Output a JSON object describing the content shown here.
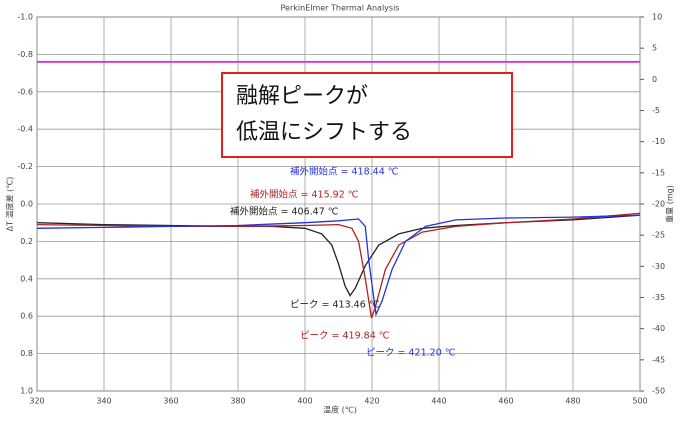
{
  "chart_data": {
    "type": "line",
    "title": "PerkinElmer Thermal Analysis",
    "xlabel": "温度 (℃)",
    "ylabel": "ΔT 温度差 (℃)",
    "y2label": "重量 (mg)",
    "xlim": [
      320,
      500
    ],
    "xticks": [
      320,
      340,
      360,
      380,
      400,
      420,
      440,
      460,
      480,
      500
    ],
    "ylim": [
      1.0,
      -1.0
    ],
    "yticks": [
      {
        "value": -1.0,
        "label": "-1.0"
      },
      -0.8,
      -0.6,
      -0.4,
      -0.2,
      {
        "value": 0,
        "label": "0.0"
      },
      0.2,
      0.4,
      0.6,
      0.8,
      {
        "value": 1.0,
        "label": "1.0"
      }
    ],
    "y2lim": [
      -50,
      10
    ],
    "y2ticks": [
      10,
      5,
      0,
      -5,
      -10,
      -15,
      -20,
      -25,
      -30,
      -35,
      -40,
      -45,
      -50
    ],
    "grid": true,
    "series": [
      {
        "color": "#222222",
        "x": [
          320,
          340,
          360,
          380,
          390,
          400,
          405,
          408,
          410,
          412,
          413.46,
          415,
          418,
          422,
          428,
          435,
          445,
          460,
          480,
          500
        ],
        "values": [
          0.1,
          0.11,
          0.115,
          0.12,
          0.12,
          0.13,
          0.16,
          0.22,
          0.32,
          0.44,
          0.49,
          0.45,
          0.33,
          0.22,
          0.16,
          0.13,
          0.115,
          0.1,
          0.085,
          0.06
        ]
      },
      {
        "color": "#b22222",
        "x": [
          320,
          340,
          360,
          380,
          400,
          410,
          414,
          416,
          418,
          419.84,
          421,
          424,
          428,
          435,
          445,
          460,
          480,
          500
        ],
        "values": [
          0.11,
          0.115,
          0.12,
          0.12,
          0.115,
          0.11,
          0.13,
          0.2,
          0.4,
          0.61,
          0.55,
          0.35,
          0.22,
          0.15,
          0.12,
          0.1,
          0.08,
          0.05
        ]
      },
      {
        "color": "#2233dd",
        "x": [
          320,
          340,
          360,
          380,
          400,
          410,
          416,
          418,
          419,
          421.2,
          423,
          426,
          430,
          436,
          445,
          460,
          480,
          500
        ],
        "values": [
          0.13,
          0.125,
          0.12,
          0.115,
          0.1,
          0.09,
          0.08,
          0.12,
          0.3,
          0.59,
          0.52,
          0.35,
          0.2,
          0.12,
          0.085,
          0.075,
          0.07,
          0.06
        ]
      },
      {
        "color": "#cc44cc",
        "axis": "y2",
        "x": [
          320,
          500
        ],
        "values": [
          2.8,
          2.8
        ]
      }
    ],
    "annotations": [
      {
        "text": "補外開始点 = 418.44 ℃",
        "color": "#2233dd"
      },
      {
        "text": "補外開始点 = 415.92 ℃",
        "color": "#b22222"
      },
      {
        "text": "補外開始点 = 406.47 ℃",
        "color": "#222222"
      },
      {
        "text": "ピーク = 413.46 ℃",
        "color": "#222222"
      },
      {
        "text": "ピーク = 419.84 ℃",
        "color": "#b22222"
      },
      {
        "text": "ピーク = 421.20 ℃",
        "color": "#2233dd"
      }
    ],
    "callout": [
      "融解ピークが",
      "低温にシフトする"
    ]
  }
}
